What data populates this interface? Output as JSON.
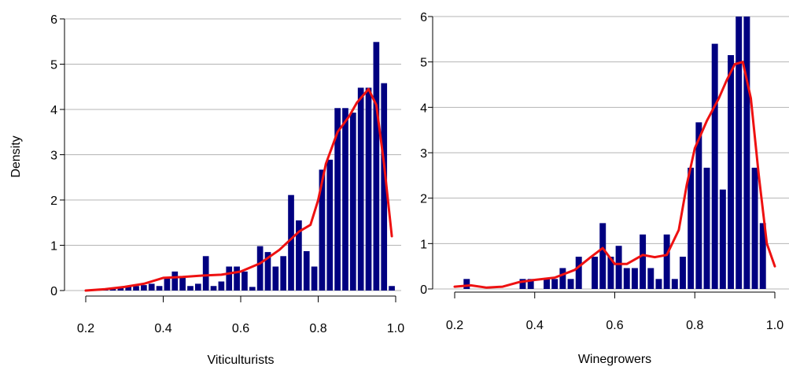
{
  "figure": {
    "ylabel": "Density"
  },
  "chart_data": [
    {
      "type": "bar",
      "xlabel": "Viticulturists",
      "ylabel": "Density",
      "xlim": [
        0.2,
        1.0
      ],
      "ylim": [
        0,
        6
      ],
      "grid": "horizontal",
      "legend": "none",
      "x_ticks": [
        0.2,
        0.4,
        0.6,
        0.8,
        1.0
      ],
      "x_tick_labels": [
        "0.2",
        "0.4",
        "0.6",
        "0.8",
        "1.0"
      ],
      "y_ticks": [
        0,
        1,
        2,
        3,
        4,
        5,
        6
      ],
      "y_tick_labels": [
        "0",
        "1",
        "2",
        "3",
        "4",
        "5",
        "6"
      ],
      "bin_width": 0.02,
      "bins_start": [
        0.2,
        0.22,
        0.24,
        0.26,
        0.28,
        0.3,
        0.32,
        0.34,
        0.36,
        0.38,
        0.4,
        0.42,
        0.44,
        0.46,
        0.48,
        0.5,
        0.52,
        0.54,
        0.56,
        0.58,
        0.6,
        0.62,
        0.64,
        0.66,
        0.68,
        0.7,
        0.72,
        0.74,
        0.76,
        0.78,
        0.8,
        0.82,
        0.84,
        0.86,
        0.88,
        0.9,
        0.92,
        0.94,
        0.96,
        0.98
      ],
      "values": [
        0.02,
        0.02,
        0.03,
        0.05,
        0.06,
        0.08,
        0.1,
        0.12,
        0.15,
        0.1,
        0.3,
        0.42,
        0.3,
        0.1,
        0.15,
        0.76,
        0.1,
        0.2,
        0.53,
        0.53,
        0.42,
        0.08,
        0.98,
        0.85,
        0.53,
        0.76,
        2.11,
        1.55,
        0.87,
        0.53,
        2.67,
        2.89,
        4.03,
        4.03,
        3.93,
        4.48,
        4.48,
        5.49,
        4.58,
        0.1
      ],
      "bar_color": "#000080",
      "density_curve": {
        "color": "#ee1111",
        "x": [
          0.2,
          0.25,
          0.3,
          0.35,
          0.4,
          0.45,
          0.5,
          0.55,
          0.6,
          0.65,
          0.7,
          0.75,
          0.78,
          0.8,
          0.82,
          0.85,
          0.88,
          0.9,
          0.93,
          0.95,
          0.97,
          0.99
        ],
        "y": [
          0.0,
          0.03,
          0.08,
          0.15,
          0.28,
          0.3,
          0.33,
          0.35,
          0.42,
          0.6,
          0.9,
          1.3,
          1.45,
          2.0,
          2.8,
          3.5,
          3.85,
          4.15,
          4.45,
          4.1,
          2.8,
          1.2
        ]
      }
    },
    {
      "type": "bar",
      "xlabel": "Winegrowers",
      "ylabel": "",
      "xlim": [
        0.2,
        1.0
      ],
      "ylim": [
        0,
        6
      ],
      "grid": "horizontal",
      "legend": "none",
      "x_ticks": [
        0.2,
        0.4,
        0.6,
        0.8,
        1.0
      ],
      "x_tick_labels": [
        "0.2",
        "0.4",
        "0.6",
        "0.8",
        "1.0"
      ],
      "y_ticks": [
        0,
        1,
        2,
        3,
        4,
        5,
        6
      ],
      "y_tick_labels": [
        "0",
        "1",
        "2",
        "3",
        "4",
        "5",
        "6"
      ],
      "bin_width": 0.02,
      "bins_start": [
        0.22,
        0.36,
        0.38,
        0.42,
        0.44,
        0.46,
        0.48,
        0.5,
        0.54,
        0.56,
        0.58,
        0.6,
        0.62,
        0.64,
        0.66,
        0.68,
        0.7,
        0.72,
        0.74,
        0.76,
        0.78,
        0.8,
        0.82,
        0.84,
        0.86,
        0.88,
        0.9,
        0.92,
        0.94,
        0.96
      ],
      "values": [
        0.22,
        0.22,
        0.22,
        0.22,
        0.22,
        0.46,
        0.22,
        0.71,
        0.71,
        1.45,
        0.71,
        0.95,
        0.46,
        0.46,
        1.2,
        0.46,
        0.22,
        1.2,
        0.22,
        0.71,
        2.67,
        3.67,
        2.67,
        5.4,
        2.19,
        5.15,
        6.0,
        6.0,
        2.67,
        1.45
      ],
      "bar_color": "#000080",
      "density_curve": {
        "color": "#ee1111",
        "x": [
          0.2,
          0.24,
          0.28,
          0.32,
          0.36,
          0.4,
          0.45,
          0.5,
          0.54,
          0.57,
          0.6,
          0.63,
          0.67,
          0.7,
          0.73,
          0.76,
          0.78,
          0.8,
          0.83,
          0.86,
          0.88,
          0.9,
          0.92,
          0.94,
          0.96,
          0.98,
          1.0
        ],
        "y": [
          0.05,
          0.08,
          0.03,
          0.05,
          0.15,
          0.2,
          0.25,
          0.42,
          0.7,
          0.9,
          0.55,
          0.55,
          0.75,
          0.7,
          0.75,
          1.3,
          2.3,
          3.1,
          3.7,
          4.2,
          4.6,
          4.95,
          5.0,
          4.2,
          2.5,
          1.0,
          0.5
        ]
      }
    }
  ]
}
